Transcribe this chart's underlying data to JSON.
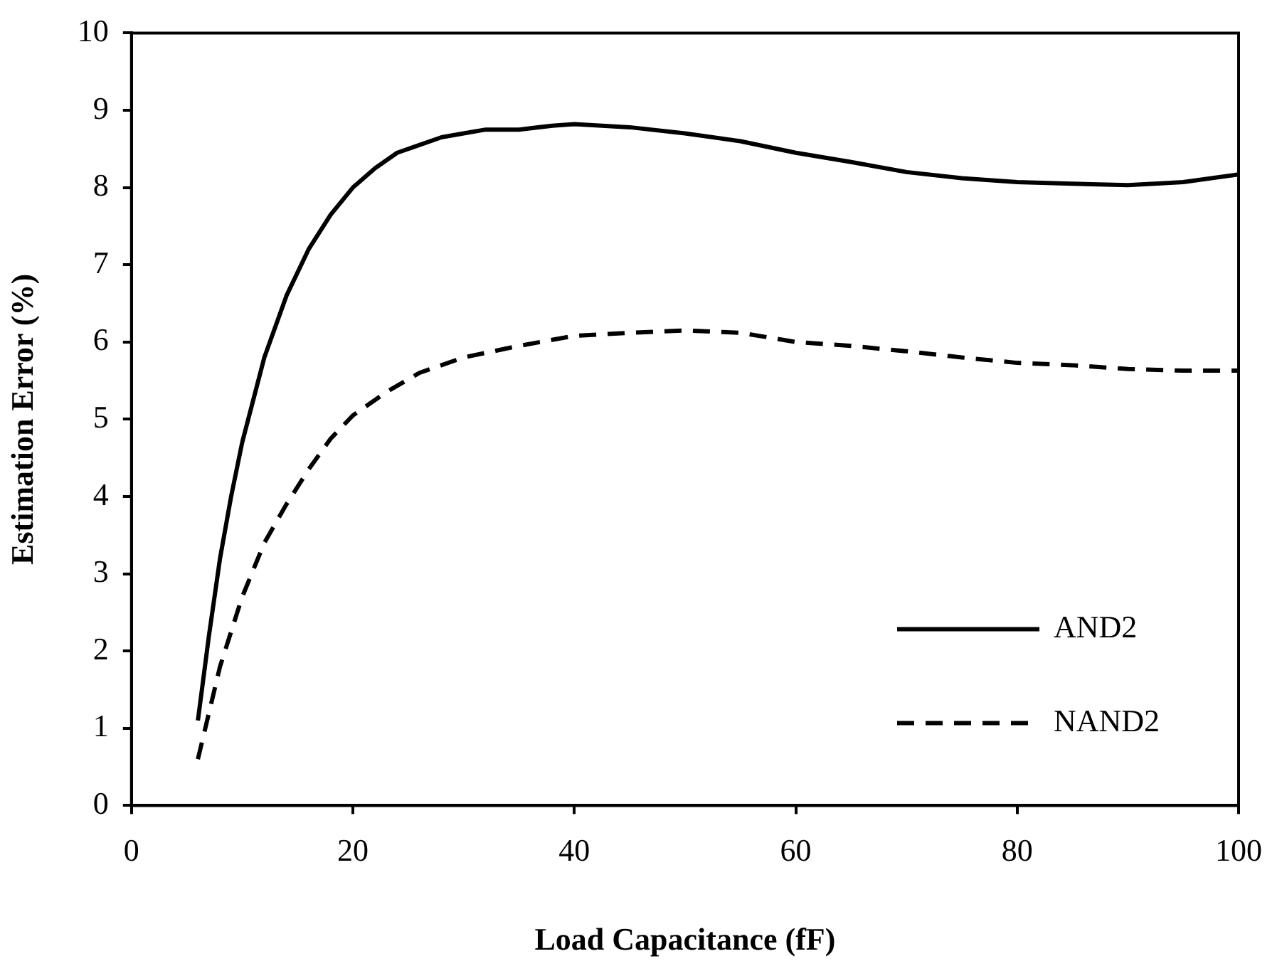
{
  "chart_data": {
    "type": "line",
    "xlabel": "Load Capacitance (fF)",
    "ylabel": "Estimation Error (%)",
    "xlim": [
      0,
      100
    ],
    "xticks": [
      0,
      20,
      40,
      60,
      80,
      100
    ],
    "ylim": [
      0,
      10
    ],
    "yticks": [
      0,
      1,
      2,
      3,
      4,
      5,
      6,
      7,
      8,
      9,
      10
    ],
    "grid": false,
    "legend": "bottom right",
    "marker": "none",
    "series": [
      {
        "name": "AND2",
        "color": "#000000",
        "line_style": "solid",
        "x": [
          6,
          7,
          8,
          9,
          10,
          12,
          14,
          16,
          18,
          20,
          22,
          24,
          26,
          28,
          30,
          32,
          35,
          38,
          40,
          45,
          50,
          55,
          60,
          65,
          70,
          75,
          80,
          85,
          90,
          95,
          100
        ],
        "values": [
          1.1,
          2.2,
          3.2,
          4.0,
          4.7,
          5.8,
          6.6,
          7.2,
          7.65,
          8.0,
          8.25,
          8.45,
          8.55,
          8.65,
          8.7,
          8.75,
          8.75,
          8.8,
          8.82,
          8.78,
          8.7,
          8.6,
          8.45,
          8.33,
          8.2,
          8.12,
          8.07,
          8.05,
          8.03,
          8.07,
          8.17
        ]
      },
      {
        "name": "NAND2",
        "color": "#000000",
        "line_style": "dashed",
        "x": [
          6,
          7,
          8,
          10,
          12,
          14,
          16,
          18,
          20,
          23,
          26,
          30,
          35,
          40,
          45,
          50,
          55,
          60,
          65,
          70,
          75,
          80,
          85,
          90,
          95,
          100
        ],
        "values": [
          0.6,
          1.2,
          1.8,
          2.7,
          3.4,
          3.9,
          4.35,
          4.75,
          5.05,
          5.35,
          5.6,
          5.8,
          5.95,
          6.08,
          6.12,
          6.15,
          6.12,
          6.0,
          5.95,
          5.88,
          5.8,
          5.73,
          5.7,
          5.65,
          5.63,
          5.63
        ]
      }
    ]
  }
}
